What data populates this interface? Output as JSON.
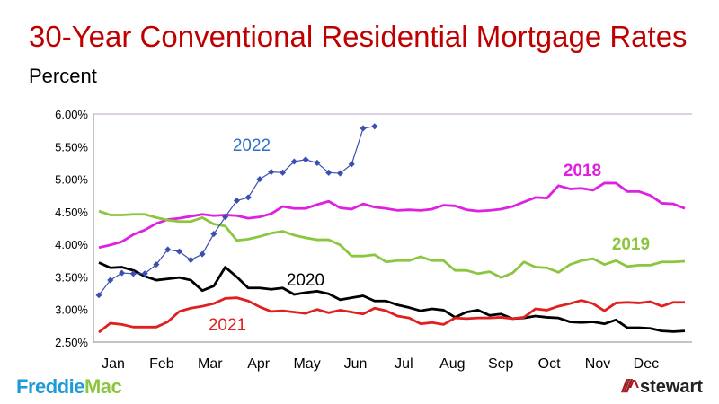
{
  "header": {
    "title": "30-Year Conventional Residential Mortgage Rates",
    "subtitle": "Percent"
  },
  "logos": {
    "left": "FreddieMac",
    "right": "stewart"
  },
  "chart_data": {
    "type": "line",
    "title": "30-Year Conventional Residential Mortgage Rates",
    "ylabel": "Percent",
    "ylim": [
      2.5,
      6.0
    ],
    "yticks": [
      "2.50%",
      "3.00%",
      "3.50%",
      "4.00%",
      "4.50%",
      "5.00%",
      "5.50%",
      "6.00%"
    ],
    "ytick_values": [
      2.5,
      3.0,
      3.5,
      4.0,
      4.5,
      5.0,
      5.5,
      6.0
    ],
    "xticks": [
      "Jan",
      "Feb",
      "Mar",
      "Apr",
      "May",
      "Jun",
      "Jul",
      "Aug",
      "Sep",
      "Oct",
      "Nov",
      "Dec"
    ],
    "x_unit": "week of year",
    "grid": false,
    "legend": "inline labels",
    "series": [
      {
        "name": "2018",
        "color": "#e020e0",
        "markers": false,
        "values": [
          3.95,
          3.99,
          4.04,
          4.15,
          4.22,
          4.32,
          4.38,
          4.4,
          4.43,
          4.46,
          4.44,
          4.45,
          4.44,
          4.4,
          4.42,
          4.47,
          4.58,
          4.55,
          4.55,
          4.61,
          4.66,
          4.56,
          4.54,
          4.62,
          4.57,
          4.55,
          4.52,
          4.53,
          4.52,
          4.54,
          4.6,
          4.59,
          4.53,
          4.51,
          4.52,
          4.54,
          4.58,
          4.65,
          4.72,
          4.71,
          4.9,
          4.85,
          4.86,
          4.83,
          4.94,
          4.94,
          4.81,
          4.81,
          4.75,
          4.63,
          4.62,
          4.55
        ]
      },
      {
        "name": "2019",
        "color": "#8cc63f",
        "markers": false,
        "values": [
          4.51,
          4.45,
          4.45,
          4.46,
          4.46,
          4.41,
          4.37,
          4.35,
          4.35,
          4.41,
          4.31,
          4.28,
          4.06,
          4.08,
          4.12,
          4.17,
          4.2,
          4.14,
          4.1,
          4.07,
          4.07,
          3.99,
          3.82,
          3.82,
          3.84,
          3.73,
          3.75,
          3.75,
          3.81,
          3.75,
          3.75,
          3.6,
          3.6,
          3.55,
          3.58,
          3.49,
          3.56,
          3.73,
          3.65,
          3.64,
          3.57,
          3.69,
          3.75,
          3.78,
          3.69,
          3.75,
          3.66,
          3.68,
          3.68,
          3.73,
          3.73,
          3.74
        ]
      },
      {
        "name": "2020",
        "color": "#000000",
        "markers": false,
        "values": [
          3.72,
          3.64,
          3.65,
          3.6,
          3.51,
          3.45,
          3.47,
          3.49,
          3.45,
          3.29,
          3.36,
          3.65,
          3.5,
          3.33,
          3.33,
          3.31,
          3.33,
          3.23,
          3.26,
          3.28,
          3.24,
          3.15,
          3.18,
          3.21,
          3.13,
          3.13,
          3.07,
          3.03,
          2.98,
          3.01,
          2.99,
          2.88,
          2.96,
          2.99,
          2.91,
          2.93,
          2.86,
          2.87,
          2.9,
          2.88,
          2.87,
          2.81,
          2.8,
          2.81,
          2.78,
          2.84,
          2.72,
          2.72,
          2.71,
          2.67,
          2.66,
          2.67
        ]
      },
      {
        "name": "2021",
        "color": "#e02020",
        "markers": false,
        "values": [
          2.65,
          2.79,
          2.77,
          2.73,
          2.73,
          2.73,
          2.81,
          2.97,
          3.02,
          3.05,
          3.09,
          3.17,
          3.18,
          3.13,
          3.04,
          2.97,
          2.98,
          2.96,
          2.94,
          3.0,
          2.95,
          2.99,
          2.96,
          2.93,
          3.02,
          2.98,
          2.9,
          2.87,
          2.78,
          2.8,
          2.77,
          2.87,
          2.86,
          2.87,
          2.87,
          2.88,
          2.86,
          2.88,
          3.01,
          2.99,
          3.05,
          3.09,
          3.14,
          3.09,
          2.98,
          3.1,
          3.11,
          3.1,
          3.12,
          3.05,
          3.11,
          3.11
        ]
      },
      {
        "name": "2022",
        "color": "#3a4fb0",
        "label_color": "#2e6fc8",
        "markers": true,
        "values": [
          3.22,
          3.45,
          3.56,
          3.55,
          3.55,
          3.69,
          3.92,
          3.89,
          3.76,
          3.85,
          4.16,
          4.42,
          4.67,
          4.72,
          5.0,
          5.11,
          5.1,
          5.27,
          5.3,
          5.25,
          5.1,
          5.09,
          5.23,
          5.78,
          5.81
        ]
      }
    ]
  }
}
